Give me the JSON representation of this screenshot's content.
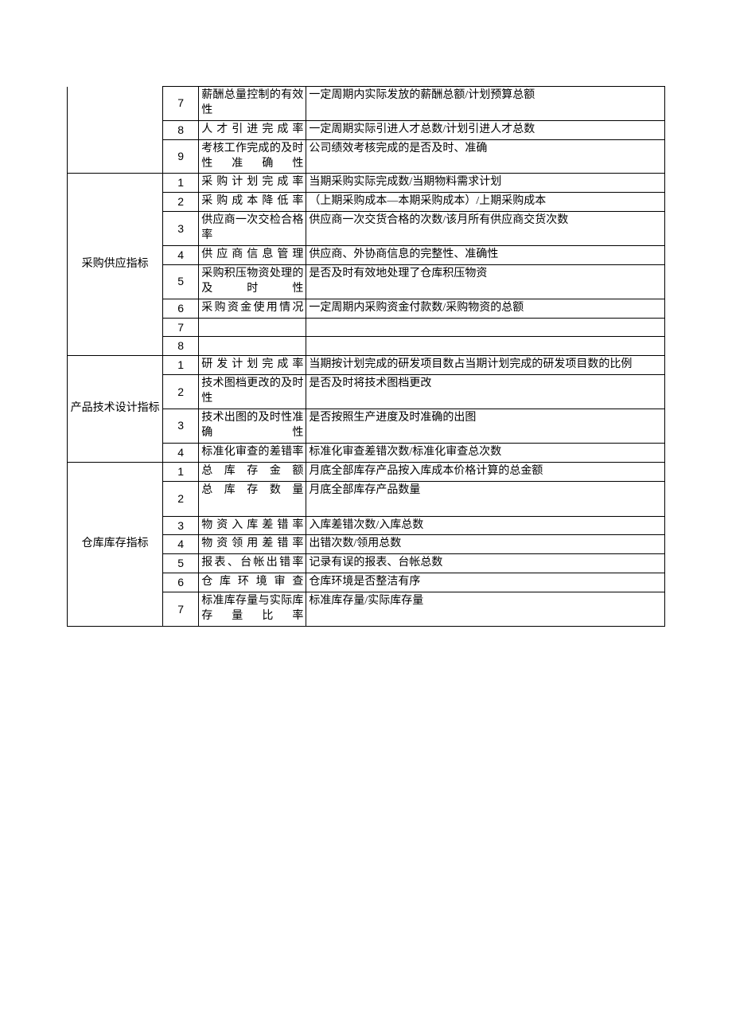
{
  "table": {
    "border_color": "#000000",
    "background_color": "#ffffff",
    "font_size": 14,
    "groups": [
      {
        "category": "",
        "no_left_border_top": true,
        "rows": [
          {
            "num": "7",
            "name": "薪酬总量控制的有效性",
            "desc": "一定周期内实际发放的薪酬总额/计划预算总额"
          },
          {
            "num": "8",
            "name": "人才引进完成率",
            "desc": "一定周期实际引进人才总数/计划引进人才总数"
          },
          {
            "num": "9",
            "name": "考核工作完成的及时性准确性",
            "desc": "公司绩效考核完成的是否及时、准确"
          }
        ]
      },
      {
        "category": "采购供应指标",
        "rows": [
          {
            "num": "1",
            "name": "采购计划完成率",
            "desc": "当期采购实际完成数/当期物料需求计划"
          },
          {
            "num": "2",
            "name": "采购成本降低率",
            "desc": "（上期采购成本—本期采购成本）/上期采购成本"
          },
          {
            "num": "3",
            "name": "供应商一次交检合格率",
            "desc": "供应商一次交货合格的次数/该月所有供应商交货次数"
          },
          {
            "num": "4",
            "name": "供应商信息管理",
            "desc": "供应商、外协商信息的完整性、准确性"
          },
          {
            "num": "5",
            "name": "采购积压物资处理的及时性",
            "desc": "是否及时有效地处理了仓库积压物资"
          },
          {
            "num": "6",
            "name": "采购资金使用情况",
            "desc": "一定周期内采购资金付款数/采购物资的总额"
          },
          {
            "num": "7",
            "name": "",
            "desc": ""
          },
          {
            "num": "8",
            "name": "",
            "desc": ""
          }
        ]
      },
      {
        "category": "产品技术设计指标",
        "rows": [
          {
            "num": "1",
            "name": "研发计划完成率",
            "desc": "当期按计划完成的研发项目数占当期计划完成的研发项目数的比例"
          },
          {
            "num": "2",
            "name": "技术图档更改的及时性",
            "desc": "是否及时将技术图档更改"
          },
          {
            "num": "3",
            "name": "技术出图的及时性准确性",
            "desc": "是否按照生产进度及时准确的出图"
          },
          {
            "num": "4",
            "name": "标准化审查的差错率",
            "desc": "标准化审查差错次数/标准化审查总次数"
          }
        ]
      },
      {
        "category": "仓库库存指标",
        "rows": [
          {
            "num": "1",
            "name": "总库存金额",
            "desc": "月底全部库存产品按入库成本价格计算的总金额"
          },
          {
            "num": "2",
            "name": "总库存数量",
            "desc": "月底全部库存产品数量",
            "min_height": 44
          },
          {
            "num": "3",
            "name": "物资入库差错率",
            "desc": "入库差错次数/入库总数"
          },
          {
            "num": "4",
            "name": "物资领用差错率",
            "desc": "出错次数/领用总数"
          },
          {
            "num": "5",
            "name": "报表、台帐出错率",
            "desc": "记录有误的报表、台帐总数"
          },
          {
            "num": "6",
            "name": "仓库环境审查",
            "desc": "仓库环境是否整洁有序"
          },
          {
            "num": "7",
            "name": "标准库存量与实际库存量比率",
            "desc": "标准库存量/实际库存量"
          }
        ]
      }
    ]
  }
}
